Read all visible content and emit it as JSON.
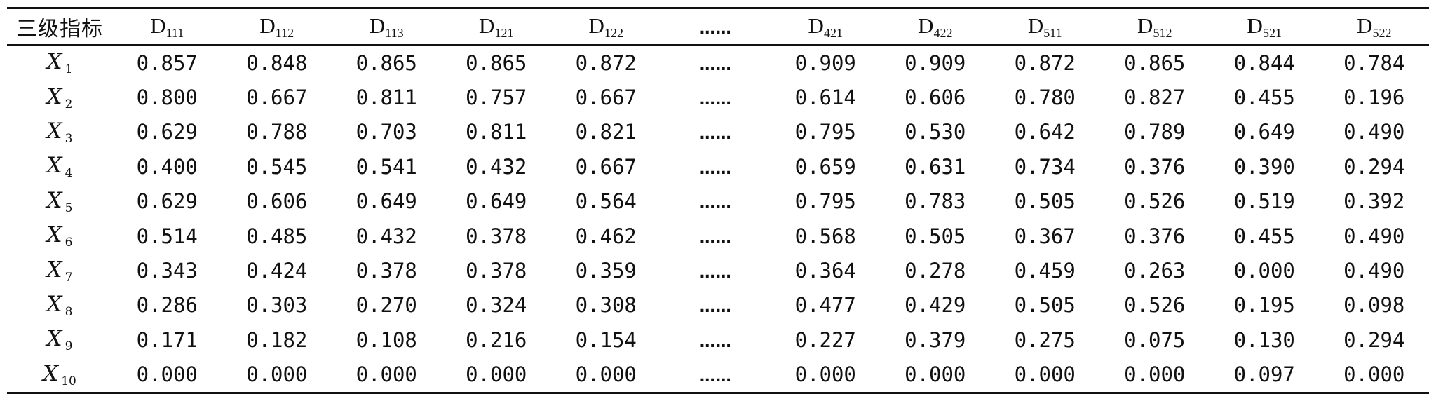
{
  "table": {
    "corner_header": "三级指标",
    "columns": [
      {
        "main": "D",
        "sub": "111"
      },
      {
        "main": "D",
        "sub": "112"
      },
      {
        "main": "D",
        "sub": "113"
      },
      {
        "main": "D",
        "sub": "121"
      },
      {
        "main": "D",
        "sub": "122"
      },
      {
        "ellipsis": "……"
      },
      {
        "main": "D",
        "sub": "421"
      },
      {
        "main": "D",
        "sub": "422"
      },
      {
        "main": "D",
        "sub": "511"
      },
      {
        "main": "D",
        "sub": "512"
      },
      {
        "main": "D",
        "sub": "521"
      },
      {
        "main": "D",
        "sub": "522"
      }
    ],
    "rows": [
      {
        "label": "X",
        "sub": "1",
        "values": [
          "0.857",
          "0.848",
          "0.865",
          "0.865",
          "0.872",
          "……",
          "0.909",
          "0.909",
          "0.872",
          "0.865",
          "0.844",
          "0.784"
        ]
      },
      {
        "label": "X",
        "sub": "2",
        "values": [
          "0.800",
          "0.667",
          "0.811",
          "0.757",
          "0.667",
          "……",
          "0.614",
          "0.606",
          "0.780",
          "0.827",
          "0.455",
          "0.196"
        ]
      },
      {
        "label": "X",
        "sub": "3",
        "values": [
          "0.629",
          "0.788",
          "0.703",
          "0.811",
          "0.821",
          "……",
          "0.795",
          "0.530",
          "0.642",
          "0.789",
          "0.649",
          "0.490"
        ]
      },
      {
        "label": "X",
        "sub": "4",
        "values": [
          "0.400",
          "0.545",
          "0.541",
          "0.432",
          "0.667",
          "……",
          "0.659",
          "0.631",
          "0.734",
          "0.376",
          "0.390",
          "0.294"
        ]
      },
      {
        "label": "X",
        "sub": "5",
        "values": [
          "0.629",
          "0.606",
          "0.649",
          "0.649",
          "0.564",
          "……",
          "0.795",
          "0.783",
          "0.505",
          "0.526",
          "0.519",
          "0.392"
        ]
      },
      {
        "label": "X",
        "sub": "6",
        "values": [
          "0.514",
          "0.485",
          "0.432",
          "0.378",
          "0.462",
          "……",
          "0.568",
          "0.505",
          "0.367",
          "0.376",
          "0.455",
          "0.490"
        ]
      },
      {
        "label": "X",
        "sub": "7",
        "values": [
          "0.343",
          "0.424",
          "0.378",
          "0.378",
          "0.359",
          "……",
          "0.364",
          "0.278",
          "0.459",
          "0.263",
          "0.000",
          "0.490"
        ]
      },
      {
        "label": "X",
        "sub": "8",
        "values": [
          "0.286",
          "0.303",
          "0.270",
          "0.324",
          "0.308",
          "……",
          "0.477",
          "0.429",
          "0.505",
          "0.526",
          "0.195",
          "0.098"
        ]
      },
      {
        "label": "X",
        "sub": "9",
        "values": [
          "0.171",
          "0.182",
          "0.108",
          "0.216",
          "0.154",
          "……",
          "0.227",
          "0.379",
          "0.275",
          "0.075",
          "0.130",
          "0.294"
        ]
      },
      {
        "label": "X",
        "sub": "10",
        "values": [
          "0.000",
          "0.000",
          "0.000",
          "0.000",
          "0.000",
          "……",
          "0.000",
          "0.000",
          "0.000",
          "0.000",
          "0.097",
          "0.000"
        ]
      }
    ]
  }
}
